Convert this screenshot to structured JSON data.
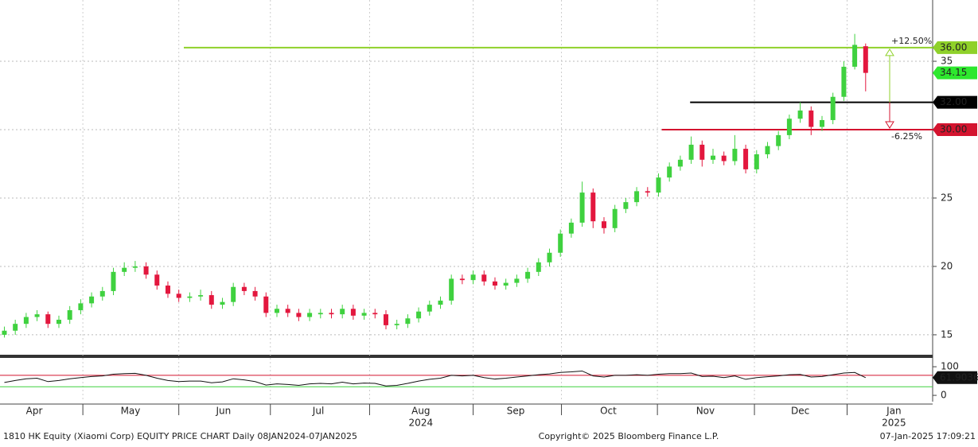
{
  "chart_data": {
    "type": "candlestick",
    "footer_left": "1810 HK Equity (Xiaomi Corp) EQUITY PRICE CHART  Daily 08JAN2024-07JAN2025",
    "footer_center": "Copyright© 2025 Bloomberg Finance L.P.",
    "footer_right": "07-Jan-2025 17:09:21",
    "xlim": [
      -0.4,
      85.0
    ],
    "xticks": [
      {
        "value": 2.74,
        "label": "Apr"
      },
      {
        "value": 11.57,
        "label": "May"
      },
      {
        "value": 20.1,
        "label": "Jun"
      },
      {
        "value": 28.8,
        "label": "Jul"
      },
      {
        "value": 38.2,
        "label": "Aug"
      },
      {
        "value": 46.9,
        "label": "Sep"
      },
      {
        "value": 55.4,
        "label": "Oct"
      },
      {
        "value": 64.3,
        "label": "Nov"
      },
      {
        "value": 73.0,
        "label": "Dec"
      },
      {
        "value": 81.6,
        "label": "Jan"
      }
    ],
    "xminor": [
      7.2,
      16.0,
      24.4,
      33.5,
      43.0,
      51.1,
      59.9,
      68.8,
      77.3
    ],
    "year_labels": [
      {
        "value": 38.2,
        "label": "2024"
      },
      {
        "value": 81.6,
        "label": "2025"
      }
    ],
    "ylim": [
      13.6,
      39.48
    ],
    "yticks": [
      15,
      20,
      25,
      30,
      35
    ],
    "grid": true,
    "up_color": "#3fd13f",
    "down_color": "#e3173e",
    "open": [
      15.0,
      15.3,
      15.8,
      16.3,
      16.5,
      15.8,
      16.1,
      16.8,
      17.3,
      17.8,
      18.2,
      19.6,
      19.9,
      20.0,
      19.4,
      18.6,
      18.0,
      17.7,
      17.8,
      17.9,
      17.2,
      17.4,
      18.5,
      18.2,
      17.8,
      16.6,
      16.9,
      16.6,
      16.3,
      16.5,
      16.6,
      16.5,
      16.9,
      16.4,
      16.6,
      16.5,
      15.7,
      15.8,
      16.2,
      16.7,
      17.2,
      17.5,
      19.1,
      19.0,
      19.4,
      18.9,
      18.6,
      18.8,
      19.1,
      19.6,
      20.3,
      21.0,
      22.4,
      23.2,
      25.4,
      23.3,
      22.8,
      24.2,
      24.7,
      25.5,
      25.4,
      26.5,
      27.3,
      27.8,
      28.9,
      27.8,
      28.1,
      27.7,
      28.6,
      27.1,
      28.2,
      28.8,
      29.6,
      30.8,
      31.4,
      30.2,
      30.7,
      32.4,
      34.6,
      36.1
    ],
    "high": [
      15.6,
      16.1,
      16.6,
      16.8,
      16.7,
      16.4,
      17.1,
      17.6,
      18.1,
      18.5,
      19.9,
      20.3,
      20.4,
      20.3,
      19.7,
      18.9,
      18.3,
      18.1,
      18.3,
      18.2,
      17.7,
      18.8,
      18.8,
      18.5,
      18.1,
      17.2,
      17.2,
      16.9,
      16.9,
      16.9,
      16.9,
      17.2,
      17.2,
      16.9,
      16.9,
      16.8,
      16.1,
      16.5,
      17.0,
      17.5,
      17.8,
      19.4,
      19.4,
      19.7,
      19.7,
      19.2,
      19.1,
      19.4,
      19.9,
      20.6,
      21.3,
      22.7,
      23.5,
      26.2,
      25.7,
      23.6,
      24.5,
      25.0,
      25.8,
      25.8,
      26.8,
      27.6,
      28.1,
      29.5,
      29.2,
      28.6,
      28.4,
      29.6,
      28.9,
      28.5,
      29.1,
      29.9,
      31.1,
      32.0,
      31.7,
      31.0,
      32.7,
      35.0,
      37.0,
      36.3
    ],
    "low": [
      14.8,
      15.0,
      15.5,
      16.0,
      15.5,
      15.5,
      15.8,
      16.5,
      17.0,
      17.5,
      17.9,
      19.3,
      19.6,
      19.1,
      18.3,
      17.7,
      17.4,
      17.4,
      17.5,
      16.9,
      16.9,
      17.1,
      17.9,
      17.5,
      16.3,
      16.3,
      16.3,
      16.0,
      16.0,
      16.2,
      16.2,
      16.2,
      16.1,
      16.1,
      16.2,
      15.4,
      15.4,
      15.5,
      15.9,
      16.4,
      16.9,
      17.2,
      18.7,
      18.7,
      18.6,
      18.3,
      18.3,
      18.5,
      18.8,
      19.3,
      20.0,
      20.7,
      22.1,
      22.9,
      22.8,
      22.4,
      22.5,
      23.9,
      24.4,
      25.1,
      25.1,
      26.2,
      27.0,
      27.5,
      27.3,
      27.5,
      27.4,
      27.4,
      26.8,
      26.8,
      27.9,
      28.5,
      29.3,
      30.5,
      29.6,
      29.9,
      30.4,
      32.1,
      34.4,
      32.8
    ],
    "close": [
      15.3,
      15.8,
      16.3,
      16.5,
      15.8,
      16.1,
      16.8,
      17.3,
      17.8,
      18.2,
      19.6,
      19.9,
      20.0,
      19.4,
      18.6,
      18.0,
      17.7,
      17.8,
      17.9,
      17.2,
      17.4,
      18.5,
      18.2,
      17.8,
      16.6,
      16.9,
      16.6,
      16.3,
      16.6,
      16.6,
      16.5,
      16.9,
      16.4,
      16.6,
      16.5,
      15.7,
      15.8,
      16.2,
      16.7,
      17.2,
      17.5,
      19.1,
      19.0,
      19.4,
      18.9,
      18.6,
      18.8,
      19.1,
      19.6,
      20.3,
      21.0,
      22.4,
      23.2,
      25.4,
      23.3,
      22.8,
      24.2,
      24.7,
      25.5,
      25.4,
      26.5,
      27.3,
      27.8,
      28.9,
      27.8,
      28.1,
      27.7,
      28.6,
      27.1,
      28.2,
      28.8,
      29.6,
      30.8,
      31.4,
      30.2,
      30.7,
      32.4,
      34.6,
      36.2,
      34.15
    ],
    "last_price": {
      "value": 34.15,
      "color": "#2ee82e"
    },
    "levels": {
      "values": [
        36,
        32,
        30
      ],
      "value_labels": [
        "36.00",
        "32.00",
        "30.00"
      ],
      "colors": [
        "#8fd12a",
        "#000000",
        "#d4142f"
      ],
      "from": [
        16.46,
        62.9,
        60.3
      ]
    },
    "annotations": [
      {
        "label": "+12.50%",
        "color": "#8fd12a"
      },
      {
        "label": "-6.25%",
        "color": "#d4142f"
      }
    ],
    "rsi": {
      "ylim": [
        -22,
        128
      ],
      "yticks": [
        0,
        100
      ],
      "bands": [
        {
          "value": 70,
          "color": "#d4142f"
        },
        {
          "value": 30,
          "color": "#3fd13f"
        }
      ],
      "values": [
        45,
        52,
        58,
        60,
        48,
        52,
        58,
        62,
        66,
        68,
        74,
        76,
        77,
        70,
        60,
        52,
        48,
        50,
        50,
        44,
        47,
        58,
        54,
        48,
        36,
        40,
        38,
        35,
        40,
        42,
        40,
        46,
        40,
        43,
        42,
        33,
        35,
        42,
        50,
        56,
        60,
        70,
        68,
        70,
        62,
        57,
        60,
        64,
        68,
        72,
        75,
        80,
        82,
        85,
        68,
        64,
        70,
        70,
        72,
        70,
        74,
        76,
        76,
        78,
        66,
        67,
        62,
        68,
        56,
        62,
        65,
        68,
        72,
        73,
        64,
        66,
        72,
        78,
        80,
        61.9036
      ]
    }
  }
}
